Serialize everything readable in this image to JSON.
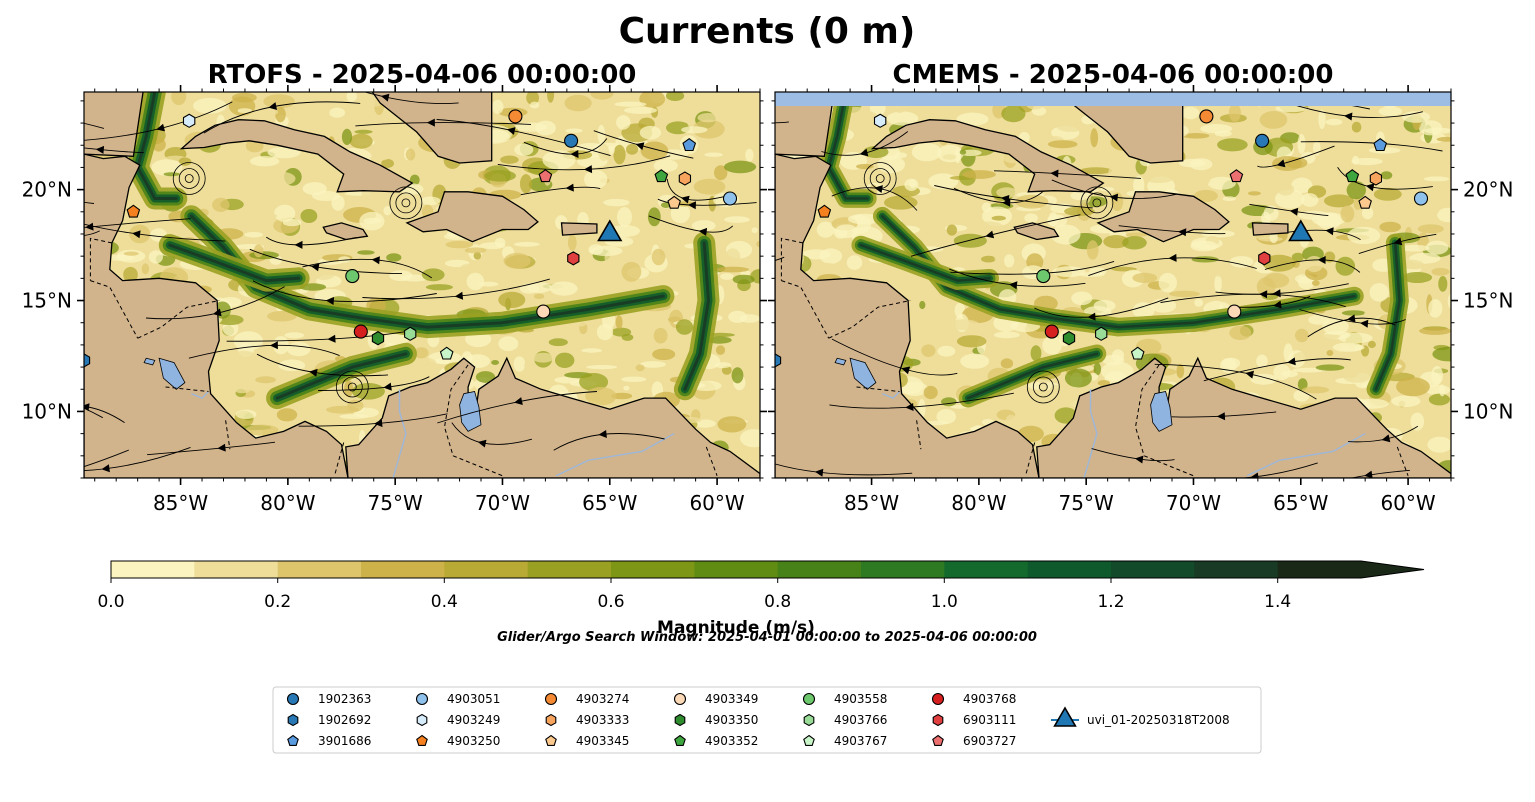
{
  "figure": {
    "title": "Currents (0 m)",
    "search_window": "Glider/Argo Search Window: 2025-04-01 00:00:00 to 2025-04-06 00:00:00"
  },
  "colors": {
    "land": "#D2B48C",
    "lake": "#8FB4E0",
    "river": "#9FB7D6",
    "no_data": "#9EBDE4",
    "colormap": [
      "#FBF4C0",
      "#EEDE9A",
      "#DEC56C",
      "#CDB24A",
      "#B8AA34",
      "#9AA122",
      "#7E9616",
      "#608C14",
      "#478218",
      "#2E7A22",
      "#136A2C",
      "#0E5A2C",
      "#134A2A",
      "#193A24",
      "#1A2818"
    ]
  },
  "chart_data": [
    {
      "type": "heatmap",
      "title": "RTOFS - 2025-04-06 00:00:00",
      "xlim": [
        -89.5,
        -58
      ],
      "ylim": [
        7,
        24.4
      ],
      "xticks": [
        -85,
        -80,
        -75,
        -70,
        -65,
        -60
      ],
      "xticklabels": [
        "85°W",
        "80°W",
        "75°W",
        "70°W",
        "65°W",
        "60°W"
      ],
      "yticks": [
        10,
        15,
        20
      ],
      "yticklabels": [
        "10°N",
        "15°N",
        "20°N"
      ],
      "ytick_side": "left"
    },
    {
      "type": "heatmap",
      "title": "CMEMS - 2025-04-06 00:00:00",
      "xlim": [
        -89.5,
        -58
      ],
      "ylim": [
        7,
        24.4
      ],
      "xticks": [
        -85,
        -80,
        -75,
        -70,
        -65,
        -60
      ],
      "xticklabels": [
        "85°W",
        "80°W",
        "75°W",
        "70°W",
        "65°W",
        "60°W"
      ],
      "yticks": [
        10,
        15,
        20
      ],
      "yticklabels": [
        "10°N",
        "15°N",
        "20°N"
      ],
      "ytick_side": "right"
    }
  ],
  "colorbar": {
    "label": "Magnitude (m/s)",
    "min": 0,
    "max": 1.5,
    "step": 0.1,
    "extend": "max",
    "ticks": [
      0,
      0.2,
      0.4,
      0.6,
      0.8,
      1.0,
      1.2,
      1.4
    ],
    "ticklabels": [
      "0.0",
      "0.2",
      "0.4",
      "0.6",
      "0.8",
      "1.0",
      "1.2",
      "1.4"
    ]
  },
  "platforms": [
    {
      "id": "1902363",
      "marker": "circle",
      "color": "#2878B5",
      "lon": -66.8,
      "lat": 22.2
    },
    {
      "id": "1902692",
      "marker": "hexagon",
      "color": "#2878B5",
      "lon": -89.5,
      "lat": 12.3
    },
    {
      "id": "3901686",
      "marker": "pentagon",
      "color": "#5A9BE0",
      "lon": -61.3,
      "lat": 22.0
    },
    {
      "id": "4903051",
      "marker": "circle",
      "color": "#8EC1EB",
      "lon": -59.4,
      "lat": 19.6
    },
    {
      "id": "4903249",
      "marker": "hexagon",
      "color": "#D7ECFA",
      "lon": -84.6,
      "lat": 23.1
    },
    {
      "id": "4903250",
      "marker": "pentagon",
      "color": "#F58020",
      "lon": -87.2,
      "lat": 19.0
    },
    {
      "id": "4903274",
      "marker": "circle",
      "color": "#F58A35",
      "lon": -69.4,
      "lat": 23.3
    },
    {
      "id": "4903333",
      "marker": "hexagon",
      "color": "#F7A55E",
      "lon": -61.5,
      "lat": 20.5
    },
    {
      "id": "4903345",
      "marker": "pentagon",
      "color": "#FBC98E",
      "lon": -62.0,
      "lat": 19.4
    },
    {
      "id": "4903349",
      "marker": "circle",
      "color": "#FCD9B6",
      "lon": -68.1,
      "lat": 14.5
    },
    {
      "id": "4903350",
      "marker": "hexagon",
      "color": "#2E8B2E",
      "lon": -75.8,
      "lat": 13.3
    },
    {
      "id": "4903352",
      "marker": "pentagon",
      "color": "#3FA63F",
      "lon": -62.6,
      "lat": 20.6
    },
    {
      "id": "4903558",
      "marker": "circle",
      "color": "#6DC86D",
      "lon": -77.0,
      "lat": 16.1
    },
    {
      "id": "4903766",
      "marker": "hexagon",
      "color": "#98DC98",
      "lon": -74.3,
      "lat": 13.5
    },
    {
      "id": "4903767",
      "marker": "pentagon",
      "color": "#C8F5C8",
      "lon": -72.6,
      "lat": 12.6
    },
    {
      "id": "4903768",
      "marker": "circle",
      "color": "#D62020",
      "lon": -76.6,
      "lat": 13.6
    },
    {
      "id": "6903111",
      "marker": "hexagon",
      "color": "#E04040",
      "lon": -66.7,
      "lat": 16.9
    },
    {
      "id": "6903727",
      "marker": "pentagon",
      "color": "#EC7070",
      "lon": -68.0,
      "lat": 20.6
    },
    {
      "id": "uvi_01-20250318T2008",
      "marker": "triangle",
      "color": "#1F78B4",
      "lon": -65.0,
      "lat": 18.0
    }
  ]
}
